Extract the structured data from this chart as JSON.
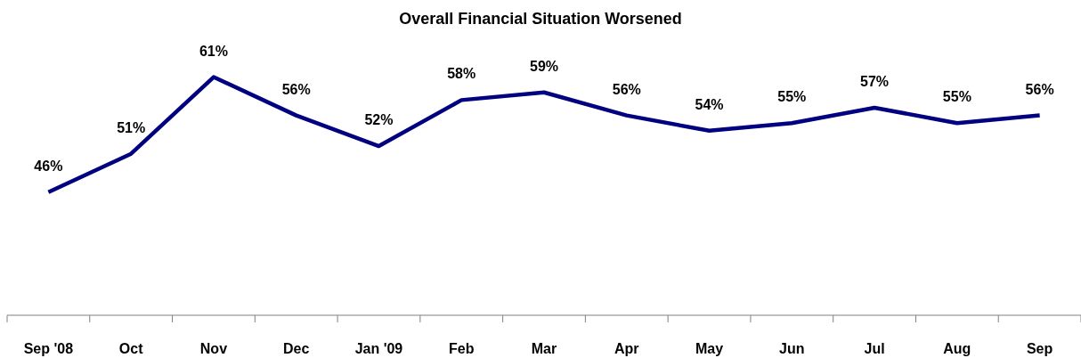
{
  "chart_data": {
    "type": "line",
    "title": "Overall Financial Situation Worsened",
    "categories": [
      "Sep '08",
      "Oct",
      "Nov",
      "Dec",
      "Jan '09",
      "Feb",
      "Mar",
      "Apr",
      "May",
      "Jun",
      "Jul",
      "Aug",
      "Sep"
    ],
    "series": [
      {
        "color": "#000080",
        "values": [
          46,
          51,
          61,
          56,
          52,
          58,
          59,
          56,
          54,
          55,
          57,
          55,
          56
        ],
        "value_labels": [
          "46%",
          "51%",
          "61%",
          "56%",
          "52%",
          "58%",
          "59%",
          "56%",
          "54%",
          "55%",
          "57%",
          "55%",
          "56%"
        ]
      }
    ],
    "tick_labels": "x",
    "marker": "none",
    "line_style": "solid"
  }
}
